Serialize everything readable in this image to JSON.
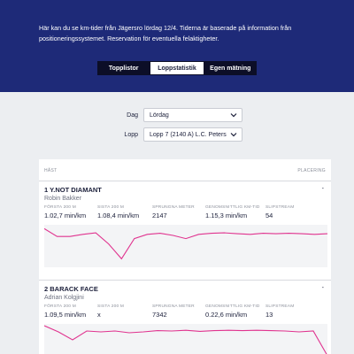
{
  "intro_text": "Här kan du se km-tider från Jägersro lördag 12/4. Tiderna är baserade på information från positioneringssystemet. Reservation för eventuella felaktigheter.",
  "tabs": [
    {
      "label": "Topplistor",
      "active": false
    },
    {
      "label": "Loppstatistik",
      "active": true
    },
    {
      "label": "Egen mätning",
      "active": false
    }
  ],
  "filters": {
    "dag": {
      "label": "Dag",
      "value": "Lördag"
    },
    "lopp": {
      "label": "Lopp",
      "value": "Lopp 7 (2140 A) L.C. Peters"
    }
  },
  "card_header": {
    "left": "HÄST",
    "right": "PLACERING"
  },
  "entries": [
    {
      "title": "1  Y.NOT DIAMANT",
      "driver": "Robin Bakker",
      "dash": "-",
      "stats": [
        {
          "label": "FÖRSTA 200 M",
          "value": "1.02,7 min/km"
        },
        {
          "label": "SISTA 200 M",
          "value": "1.08,4 min/km"
        },
        {
          "label": "SPRUNGNA METER",
          "value": "2147"
        },
        {
          "label": "GENOMSNITTLIG KM-TID",
          "value": "1.15,3 min/km"
        },
        {
          "label": "SLIPSTREAM",
          "value": "54"
        }
      ],
      "chart_data": {
        "type": "line",
        "values": [
          1.82,
          1.45,
          1.45,
          1.55,
          1.62,
          1.1,
          0.4,
          1.35,
          1.55,
          1.6,
          1.5,
          1.35,
          1.55,
          1.6,
          1.62,
          1.58,
          1.55,
          1.6,
          1.58,
          1.6,
          1.58,
          1.55,
          1.58
        ],
        "color": "#e0338f"
      }
    },
    {
      "title": "2  BARACK FACE",
      "driver": "Adrian Kolgjini",
      "dash": "-",
      "stats": [
        {
          "label": "FÖRSTA 200 M",
          "value": "1.09,5 min/km"
        },
        {
          "label": "SISTA 200 M",
          "value": "x"
        },
        {
          "label": "SPRUNGNA METER",
          "value": "7342"
        },
        {
          "label": "GENOMSNITTLIG KM-TID",
          "value": "0.22,6 min/km"
        },
        {
          "label": "SLIPSTREAM",
          "value": "13"
        }
      ],
      "chart_data": {
        "type": "line",
        "values": [
          1.9,
          1.55,
          1.1,
          1.6,
          1.55,
          1.6,
          1.5,
          1.55,
          1.62,
          1.6,
          1.64,
          1.58,
          1.62,
          1.64,
          1.62,
          1.64,
          1.62,
          1.6,
          1.55,
          1.6,
          0.2
        ],
        "color": "#e0338f"
      }
    }
  ]
}
